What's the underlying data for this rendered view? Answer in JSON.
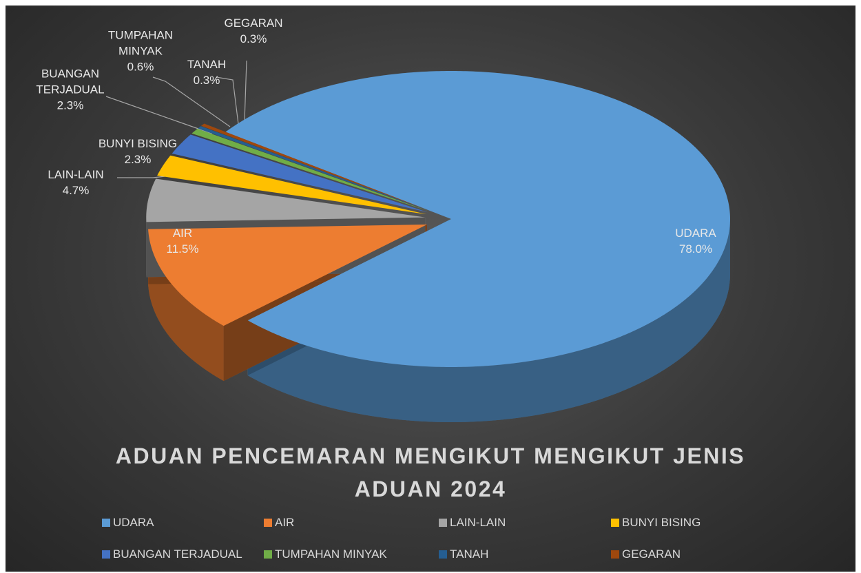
{
  "chart_data": {
    "type": "pie",
    "title": "ADUAN PENCEMARAN MENGIKUT MENGIKUT JENIS ADUAN 2024",
    "categories": [
      "UDARA",
      "AIR",
      "LAIN-LAIN",
      "BUNYI BISING",
      "BUANGAN TERJADUAL",
      "TUMPAHAN MINYAK",
      "TANAH",
      "GEGARAN"
    ],
    "values": [
      78.0,
      11.5,
      4.7,
      2.3,
      2.3,
      0.6,
      0.3,
      0.3
    ],
    "value_labels": [
      "78.0%",
      "11.5%",
      "4.7%",
      "2.3%",
      "2.3%",
      "0.6%",
      "0.3%",
      "0.3%"
    ],
    "colors": [
      "#5b9bd5",
      "#ed7d31",
      "#a5a5a5",
      "#ffc000",
      "#4472c4",
      "#70ad47",
      "#255e91",
      "#9e480e"
    ],
    "legend": "bottom"
  }
}
